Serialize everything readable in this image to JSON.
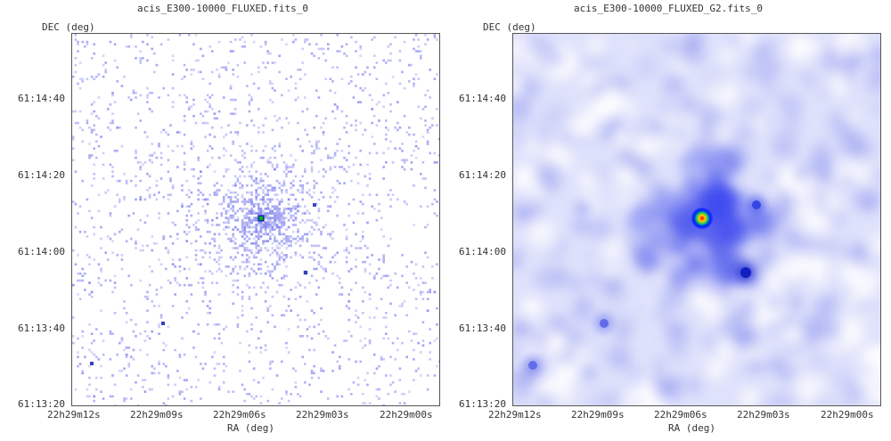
{
  "panels": [
    {
      "title": "acis_E300-10000_FLUXED.fits_0",
      "y_axis_label": "DEC (deg)",
      "x_axis_label": "RA (deg)",
      "y_ticks": [
        "61:14:40",
        "61:14:20",
        "61:14:00",
        "61:13:40",
        "61:13:20"
      ],
      "x_ticks": [
        "22h29m12s",
        "22h29m09s",
        "22h29m06s",
        "22h29m03s",
        "22h29m00s"
      ],
      "style": "raw-counts",
      "colors": {
        "background": "#ffffff",
        "counts": "#8a8cf0",
        "source_core": "#00c000"
      }
    },
    {
      "title": "acis_E300-10000_FLUXED_G2.fits_0",
      "y_axis_label": "DEC (deg)",
      "x_axis_label": "RA (deg)",
      "y_ticks": [
        "61:14:40",
        "61:14:20",
        "61:14:00",
        "61:13:40",
        "61:13:20"
      ],
      "x_ticks": [
        "22h29m12s",
        "22h29m09s",
        "22h29m06s",
        "22h29m03s",
        "22h29m00s"
      ],
      "style": "gaussian-smoothed",
      "colors": {
        "background": "#dfe2fb",
        "diffuse": "#8f96ef",
        "source_core": "#ff1000"
      }
    }
  ]
}
